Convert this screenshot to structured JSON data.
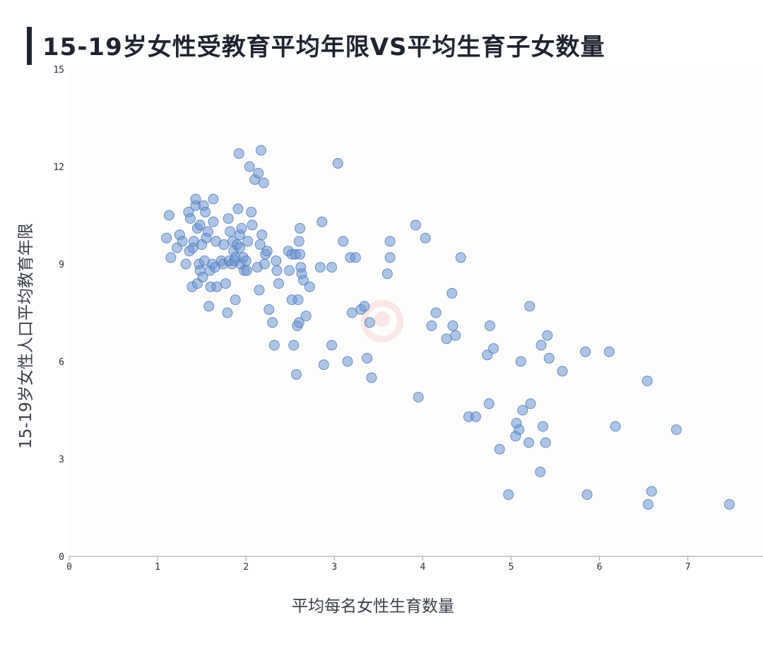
{
  "title": "15-19岁女性受教育平均年限VS平均生育子女数量",
  "colors": {
    "point": "#6c96d2",
    "title": "#1f2430"
  },
  "chart_data": {
    "type": "scatter",
    "title": "15-19岁女性受教育平均年限VS平均生育子女数量",
    "xlabel": "平均每名女性生育数量",
    "ylabel": "15-19岁女性人口平均教育年限",
    "xlim": [
      0,
      7.85
    ],
    "ylim": [
      0,
      15
    ],
    "xticks": [
      0,
      1,
      2,
      3,
      4,
      5,
      6,
      7
    ],
    "yticks": [
      0,
      3,
      6,
      9,
      12,
      15
    ],
    "grid": false,
    "legend": "none",
    "points": [
      [
        1.1,
        9.8
      ],
      [
        1.13,
        10.5
      ],
      [
        1.15,
        9.2
      ],
      [
        1.22,
        9.5
      ],
      [
        1.25,
        9.9
      ],
      [
        1.28,
        9.7
      ],
      [
        1.32,
        9.0
      ],
      [
        1.35,
        10.6
      ],
      [
        1.36,
        9.4
      ],
      [
        1.37,
        10.4
      ],
      [
        1.39,
        8.3
      ],
      [
        1.4,
        9.5
      ],
      [
        1.41,
        9.7
      ],
      [
        1.43,
        10.8
      ],
      [
        1.43,
        11.0
      ],
      [
        1.45,
        8.4
      ],
      [
        1.45,
        10.1
      ],
      [
        1.47,
        9.0
      ],
      [
        1.48,
        8.8
      ],
      [
        1.48,
        10.2
      ],
      [
        1.5,
        9.6
      ],
      [
        1.51,
        8.6
      ],
      [
        1.52,
        10.8
      ],
      [
        1.53,
        9.1
      ],
      [
        1.54,
        10.6
      ],
      [
        1.55,
        9.8
      ],
      [
        1.57,
        10.0
      ],
      [
        1.58,
        7.7
      ],
      [
        1.59,
        8.8
      ],
      [
        1.6,
        8.3
      ],
      [
        1.62,
        9.0
      ],
      [
        1.63,
        11.0
      ],
      [
        1.63,
        10.3
      ],
      [
        1.65,
        8.9
      ],
      [
        1.66,
        9.7
      ],
      [
        1.67,
        8.3
      ],
      [
        1.72,
        9.1
      ],
      [
        1.74,
        9.0
      ],
      [
        1.75,
        9.6
      ],
      [
        1.77,
        8.4
      ],
      [
        1.79,
        7.5
      ],
      [
        1.8,
        10.4
      ],
      [
        1.81,
        9.1
      ],
      [
        1.82,
        10.0
      ],
      [
        1.84,
        9.0
      ],
      [
        1.85,
        9.7
      ],
      [
        1.86,
        9.4
      ],
      [
        1.87,
        9.1
      ],
      [
        1.88,
        7.9
      ],
      [
        1.88,
        9.2
      ],
      [
        1.9,
        9.6
      ],
      [
        1.91,
        10.7
      ],
      [
        1.92,
        12.4
      ],
      [
        1.93,
        9.5
      ],
      [
        1.93,
        9.9
      ],
      [
        1.94,
        9.0
      ],
      [
        1.95,
        10.1
      ],
      [
        1.97,
        9.2
      ],
      [
        1.98,
        8.8
      ],
      [
        2.0,
        9.1
      ],
      [
        2.01,
        8.8
      ],
      [
        2.02,
        9.7
      ],
      [
        2.04,
        12.0
      ],
      [
        2.06,
        10.6
      ],
      [
        2.07,
        10.2
      ],
      [
        2.1,
        11.6
      ],
      [
        2.13,
        8.9
      ],
      [
        2.14,
        11.8
      ],
      [
        2.15,
        8.2
      ],
      [
        2.16,
        9.6
      ],
      [
        2.17,
        12.5
      ],
      [
        2.18,
        9.9
      ],
      [
        2.2,
        11.5
      ],
      [
        2.21,
        9.0
      ],
      [
        2.22,
        9.3
      ],
      [
        2.24,
        9.4
      ],
      [
        2.26,
        7.6
      ],
      [
        2.3,
        7.2
      ],
      [
        2.32,
        6.5
      ],
      [
        2.34,
        9.1
      ],
      [
        2.35,
        8.8
      ],
      [
        2.37,
        8.4
      ],
      [
        2.48,
        9.4
      ],
      [
        2.49,
        8.8
      ],
      [
        2.52,
        7.9
      ],
      [
        2.52,
        9.3
      ],
      [
        2.54,
        6.5
      ],
      [
        2.56,
        9.3
      ],
      [
        2.57,
        5.6
      ],
      [
        2.58,
        7.1
      ],
      [
        2.59,
        7.9
      ],
      [
        2.6,
        9.7
      ],
      [
        2.6,
        7.2
      ],
      [
        2.61,
        10.1
      ],
      [
        2.61,
        9.3
      ],
      [
        2.62,
        8.9
      ],
      [
        2.63,
        8.7
      ],
      [
        2.65,
        8.5
      ],
      [
        2.68,
        7.4
      ],
      [
        2.72,
        8.3
      ],
      [
        2.84,
        8.9
      ],
      [
        2.86,
        10.3
      ],
      [
        2.88,
        5.9
      ],
      [
        2.97,
        8.9
      ],
      [
        2.97,
        6.5
      ],
      [
        3.04,
        12.1
      ],
      [
        3.1,
        9.7
      ],
      [
        3.15,
        6.0
      ],
      [
        3.18,
        9.2
      ],
      [
        3.2,
        7.5
      ],
      [
        3.24,
        9.2
      ],
      [
        3.3,
        7.6
      ],
      [
        3.34,
        7.7
      ],
      [
        3.37,
        6.1
      ],
      [
        3.4,
        7.2
      ],
      [
        3.42,
        5.5
      ],
      [
        3.6,
        8.7
      ],
      [
        3.63,
        9.7
      ],
      [
        3.63,
        9.2
      ],
      [
        3.92,
        10.2
      ],
      [
        3.95,
        4.9
      ],
      [
        4.03,
        9.8
      ],
      [
        4.1,
        7.1
      ],
      [
        4.15,
        7.5
      ],
      [
        4.27,
        6.7
      ],
      [
        4.33,
        8.1
      ],
      [
        4.34,
        7.1
      ],
      [
        4.37,
        6.8
      ],
      [
        4.43,
        9.2
      ],
      [
        4.52,
        4.3
      ],
      [
        4.6,
        4.3
      ],
      [
        4.73,
        6.2
      ],
      [
        4.75,
        4.7
      ],
      [
        4.76,
        7.1
      ],
      [
        4.8,
        6.4
      ],
      [
        4.87,
        3.3
      ],
      [
        4.97,
        1.9
      ],
      [
        5.05,
        3.7
      ],
      [
        5.06,
        4.1
      ],
      [
        5.09,
        3.9
      ],
      [
        5.11,
        6.0
      ],
      [
        5.13,
        4.5
      ],
      [
        5.2,
        3.5
      ],
      [
        5.21,
        7.7
      ],
      [
        5.22,
        4.7
      ],
      [
        5.33,
        2.6
      ],
      [
        5.34,
        6.5
      ],
      [
        5.36,
        4.0
      ],
      [
        5.39,
        3.5
      ],
      [
        5.41,
        6.8
      ],
      [
        5.43,
        6.1
      ],
      [
        5.58,
        5.7
      ],
      [
        5.84,
        6.3
      ],
      [
        5.86,
        1.9
      ],
      [
        6.11,
        6.3
      ],
      [
        6.18,
        4.0
      ],
      [
        6.54,
        5.4
      ],
      [
        6.55,
        1.6
      ],
      [
        6.59,
        2.0
      ],
      [
        6.87,
        3.9
      ],
      [
        7.47,
        1.6
      ]
    ]
  }
}
